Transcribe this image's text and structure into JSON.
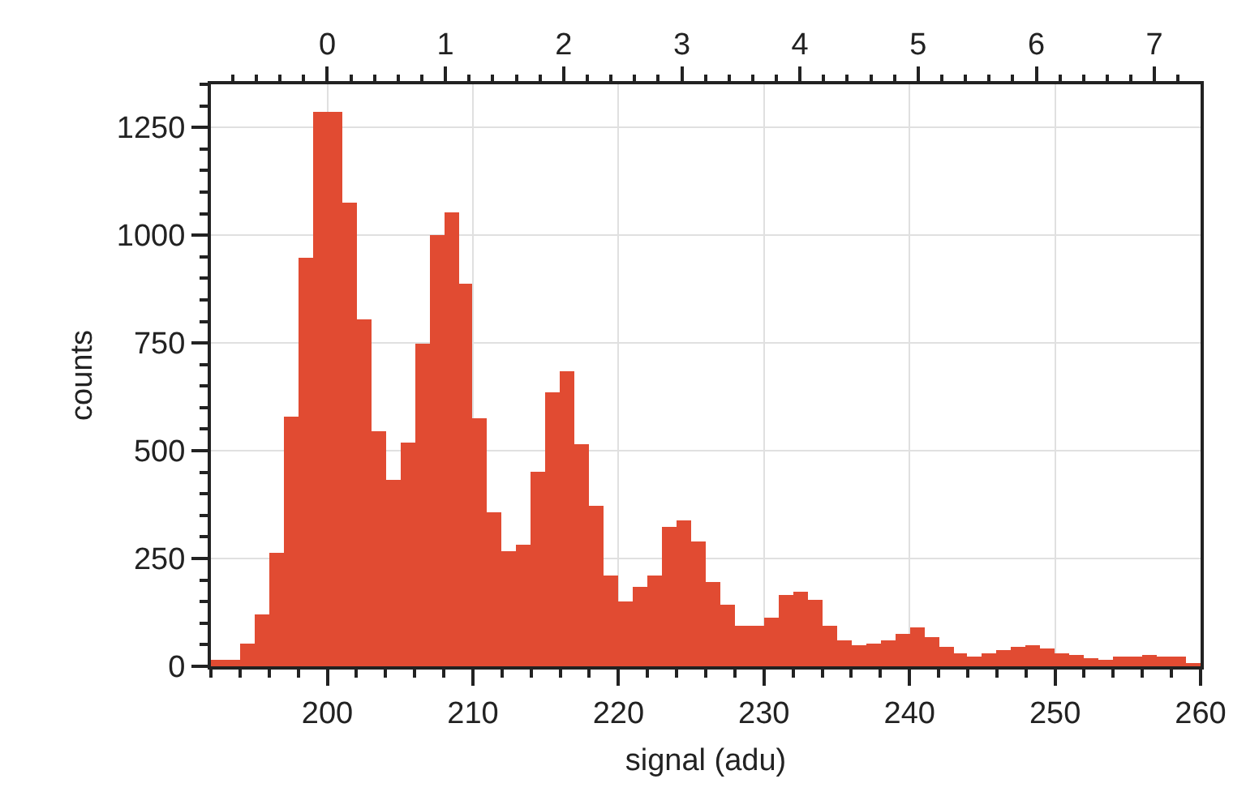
{
  "chart_data": {
    "type": "histogram",
    "xlabel": "signal (adu)",
    "ylabel": "counts",
    "color": "#e14b32",
    "bins": [
      192,
      193,
      194,
      195,
      196,
      197,
      198,
      199,
      200,
      201,
      202,
      203,
      204,
      205,
      206,
      207,
      208,
      209,
      210,
      211,
      212,
      213,
      214,
      215,
      216,
      217,
      218,
      219,
      220,
      221,
      222,
      223,
      224,
      225,
      226,
      227,
      228,
      229,
      230,
      231,
      232,
      233,
      234,
      235,
      236,
      237,
      238,
      239,
      240,
      241,
      242,
      243,
      244,
      245,
      246,
      247,
      248,
      249,
      250,
      251,
      252,
      253,
      254,
      255,
      256,
      257,
      258,
      259,
      260
    ],
    "values": [
      14,
      16,
      54,
      119,
      265,
      579,
      949,
      1286,
      1286,
      1074,
      805,
      544,
      434,
      519,
      749,
      1000,
      1052,
      886,
      575,
      356,
      266,
      281,
      451,
      634,
      686,
      516,
      371,
      209,
      151,
      186,
      211,
      324,
      339,
      289,
      196,
      144,
      94,
      94,
      111,
      164,
      174,
      156,
      94,
      61,
      50,
      54,
      59,
      74,
      89,
      66,
      44,
      29,
      22,
      31,
      36,
      44,
      49,
      41,
      31,
      26,
      19,
      16,
      24,
      24,
      26,
      24,
      21,
      9
    ],
    "xlim": [
      192,
      260
    ],
    "xticks": [
      200,
      210,
      220,
      230,
      240,
      250,
      {
        "value": 260,
        "label": "260"
      }
    ],
    "ylim": [
      0,
      1350
    ],
    "yticks": [
      0,
      250,
      500,
      750,
      1000,
      1250
    ],
    "x2lim": [
      -0.985,
      7.39
    ],
    "x2ticks": [
      0,
      1,
      2,
      3,
      4,
      5,
      6,
      7
    ],
    "grid": true
  }
}
